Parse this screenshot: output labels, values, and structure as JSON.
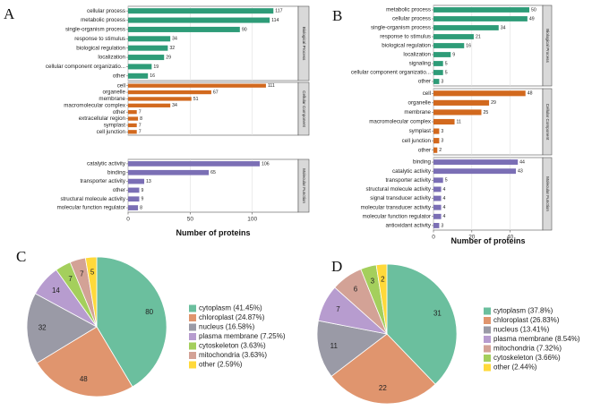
{
  "panel_letters": {
    "a": "A",
    "b": "B",
    "c": "C",
    "d": "D"
  },
  "colors": {
    "Biological Process": "#2e9c78",
    "Cellular Component": "#d2691e",
    "Molecular Function": "#7b6fb5",
    "pie": [
      "#6bbf9e",
      "#e0956e",
      "#9a9aa6",
      "#b79ccf",
      "#a4cf5c",
      "#d3a296",
      "#ffd93a"
    ]
  },
  "chart_data": [
    {
      "id": "A",
      "type": "bar",
      "orientation": "horizontal",
      "xlabel": "Number of proteins",
      "xlim": [
        0,
        137
      ],
      "xticks": [
        0,
        50,
        100
      ],
      "grid": true,
      "facets": [
        {
          "name": "Biological Process",
          "categories": [
            "cellular process",
            "metabolic process",
            "single-organism process",
            "response to stimulus",
            "biological regulation",
            "localization",
            "cellular component organizatio...",
            "other"
          ],
          "values": [
            117,
            114,
            90,
            34,
            32,
            29,
            19,
            16
          ]
        },
        {
          "name": "Cellular Component",
          "categories": [
            "cell",
            "organelle",
            "membrane",
            "macromolecular complex",
            "other",
            "extracellular region",
            "symplast",
            "cell junction"
          ],
          "values": [
            111,
            67,
            51,
            34,
            7,
            8,
            7,
            7
          ]
        },
        {
          "name": "Molecular Function",
          "categories": [
            "catalytic activity",
            "binding",
            "transporter activity",
            "other",
            "structural molecule activity",
            "molecular function regulator"
          ],
          "values": [
            106,
            65,
            13,
            9,
            9,
            8
          ]
        }
      ]
    },
    {
      "id": "B",
      "type": "bar",
      "orientation": "horizontal",
      "xlabel": "Number of proteins",
      "xlim": [
        0,
        57
      ],
      "xticks": [
        0,
        20,
        40
      ],
      "grid": true,
      "facets": [
        {
          "name": "Biological Process",
          "categories": [
            "metabolic process",
            "cellular process",
            "single-organism process",
            "response to stimulus",
            "biological regulation",
            "localization",
            "signaling",
            "cellular component organizatio...",
            "other"
          ],
          "values": [
            50,
            49,
            34,
            21,
            16,
            9,
            5,
            5,
            3
          ]
        },
        {
          "name": "Cellular Component",
          "categories": [
            "cell",
            "organelle",
            "membrane",
            "macromolecular complex",
            "symplast",
            "cell junction",
            "other"
          ],
          "values": [
            48,
            29,
            25,
            11,
            3,
            3,
            2
          ]
        },
        {
          "name": "Molecular Function",
          "categories": [
            "binding",
            "catalytic activity",
            "transporter activity",
            "structural molecule activity",
            "signal transducer activity",
            "molecular transducer activity",
            "molecular function regulator",
            "antioxidant activity"
          ],
          "values": [
            44,
            43,
            5,
            4,
            4,
            4,
            4,
            3
          ]
        }
      ]
    },
    {
      "id": "C",
      "type": "pie",
      "categories": [
        "cytoplasm",
        "chloroplast",
        "nucleus",
        "plasma membrane",
        "cytoskeleton",
        "mitochondria",
        "other"
      ],
      "values": [
        80,
        48,
        32,
        14,
        7,
        7,
        5
      ],
      "legend": [
        "cytoplasm (41.45%)",
        "chloroplast (24.87%)",
        "nucleus (16.58%)",
        "plasma membrane (7.25%)",
        "cytoskeleton (3.63%)",
        "mitochondria (3.63%)",
        "other (2.59%)"
      ],
      "colors_index": [
        0,
        1,
        2,
        3,
        4,
        5,
        6
      ],
      "legend_placement": "right"
    },
    {
      "id": "D",
      "type": "pie",
      "categories": [
        "cytoplasm",
        "chloroplast",
        "nucleus",
        "plasma membrane",
        "mitochondria",
        "cytoskeleton",
        "other"
      ],
      "values": [
        31,
        22,
        11,
        7,
        6,
        3,
        2
      ],
      "legend": [
        "cytoplasm (37.8%)",
        "chloroplast (26.83%)",
        "nucleus (13.41%)",
        "plasma membrane (8.54%)",
        "mitochondria (7.32%)",
        "cytoskeleton (3.66%)",
        "other (2.44%)"
      ],
      "colors_index": [
        0,
        1,
        2,
        3,
        5,
        4,
        6
      ],
      "legend_placement": "right"
    }
  ]
}
